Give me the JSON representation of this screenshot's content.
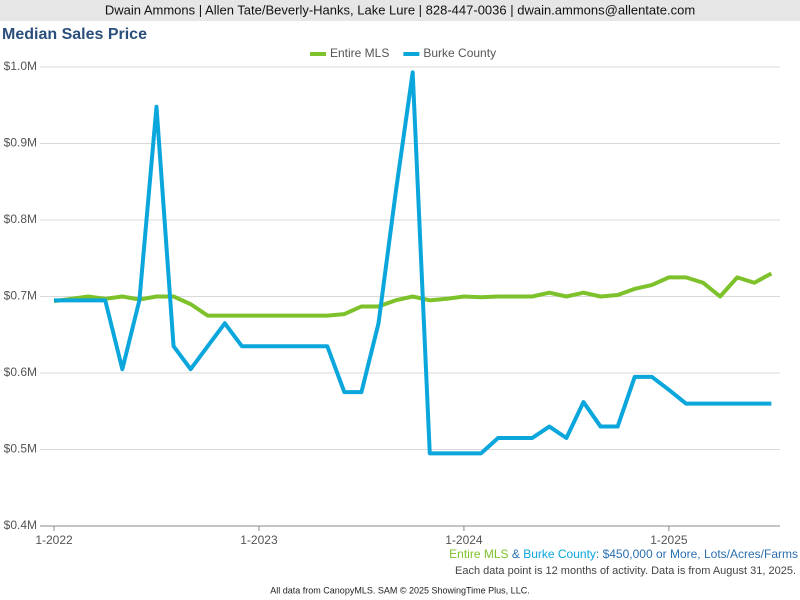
{
  "header": "Dwain Ammons | Allen Tate/Beverly-Hanks, Lake Lure | 828-447-0036 | dwain.ammons@allentate.com",
  "chart_data": {
    "type": "line",
    "title": "Median Sales Price",
    "categories": [
      "1-2022",
      null,
      null,
      null,
      null,
      null,
      null,
      null,
      null,
      null,
      null,
      null,
      "1-2023",
      null,
      null,
      null,
      null,
      null,
      null,
      null,
      null,
      null,
      null,
      null,
      "1-2024",
      null,
      null,
      null,
      null,
      null,
      null,
      null,
      null,
      null,
      null,
      null,
      "1-2025",
      null,
      null,
      null,
      null,
      null,
      null
    ],
    "series": [
      {
        "name": "Entire MLS",
        "color": "#7dc22b",
        "values": [
          0.694,
          0.697,
          0.7,
          0.697,
          0.7,
          0.696,
          0.7,
          0.7,
          0.69,
          0.675,
          0.675,
          0.675,
          0.675,
          0.675,
          0.675,
          0.675,
          0.675,
          0.677,
          0.687,
          0.687,
          0.695,
          0.7,
          0.695,
          0.697,
          0.7,
          0.699,
          0.7,
          0.7,
          0.7,
          0.705,
          0.7,
          0.705,
          0.7,
          0.702,
          0.71,
          0.715,
          0.725,
          0.725,
          0.718,
          0.7,
          0.725,
          0.718,
          0.73
        ]
      },
      {
        "name": "Burke County",
        "color": "#0aa6dc",
        "values": [
          0.695,
          0.695,
          0.695,
          0.695,
          0.605,
          0.695,
          0.948,
          0.635,
          0.605,
          0.635,
          0.665,
          0.635,
          0.635,
          0.635,
          0.635,
          0.635,
          0.635,
          0.575,
          0.575,
          0.665,
          0.835,
          0.993,
          0.495,
          0.495,
          0.495,
          0.495,
          0.515,
          0.515,
          0.515,
          0.53,
          0.515,
          0.562,
          0.53,
          0.53,
          0.595,
          0.595,
          0.578,
          0.56,
          0.56,
          0.56,
          0.56,
          0.56,
          0.56
        ]
      }
    ],
    "ylim": [
      0.4,
      1.0
    ],
    "yticks": [
      {
        "value": 0.4,
        "label": "$0.4M"
      },
      {
        "value": 0.5,
        "label": "$0.5M"
      },
      {
        "value": 0.6,
        "label": "$0.6M"
      },
      {
        "value": 0.7,
        "label": "$0.7M"
      },
      {
        "value": 0.8,
        "label": "$0.8M"
      },
      {
        "value": 0.9,
        "label": "$0.9M"
      },
      {
        "value": 1.0,
        "label": "$1.0M"
      }
    ],
    "grid": true,
    "legend": "top"
  },
  "notes": {
    "filter": [
      "Entire MLS",
      " & ",
      "Burke County",
      ": $450,000 or More, Lots/Acres/Farms"
    ],
    "activity": "Each data point is 12 months of activity. Data is from August 31, 2025.",
    "copyright": "All data from CanopyMLS. SAM © 2025 ShowingTime Plus, LLC."
  }
}
